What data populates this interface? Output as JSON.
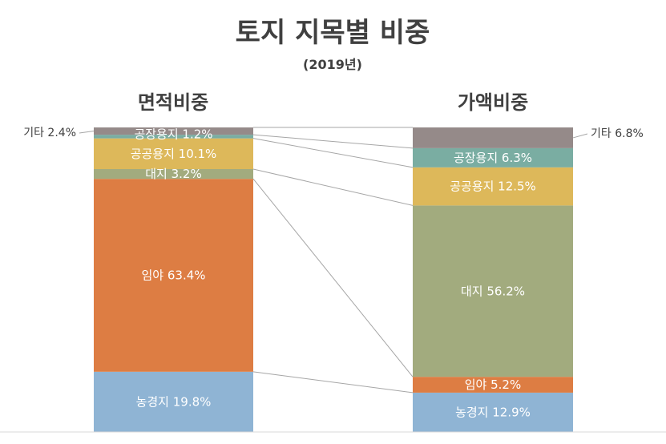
{
  "chart_data": {
    "type": "stacked-bar-comparison",
    "title": "토지 지목별 비중",
    "subtitle": "(2019년)",
    "unit": "%",
    "categories": [
      "농경지",
      "임야",
      "대지",
      "공공용지",
      "공장용지",
      "기타"
    ],
    "series": [
      {
        "name": "면적비중",
        "values": [
          19.8,
          63.4,
          3.2,
          10.1,
          1.2,
          2.4
        ],
        "labels": [
          "농경지 19.8%",
          "임야 63.4%",
          "대지 3.2%",
          "공공용지 10.1%",
          "공장용지 1.2%",
          "기타 2.4%"
        ]
      },
      {
        "name": "가액비중",
        "values": [
          12.9,
          5.2,
          56.2,
          12.5,
          6.3,
          6.8
        ],
        "labels": [
          "농경지 12.9%",
          "임야 5.2%",
          "대지 56.2%",
          "공공용지 12.5%",
          "공장용지 6.3%",
          "기타 6.8%"
        ]
      }
    ],
    "colors": [
      "#8fb4d4",
      "#dd7d43",
      "#a2ab7e",
      "#ddb85a",
      "#7aada2",
      "#958a89"
    ],
    "label_color": "#ffffff",
    "connector_color": "#a6a6a6"
  }
}
